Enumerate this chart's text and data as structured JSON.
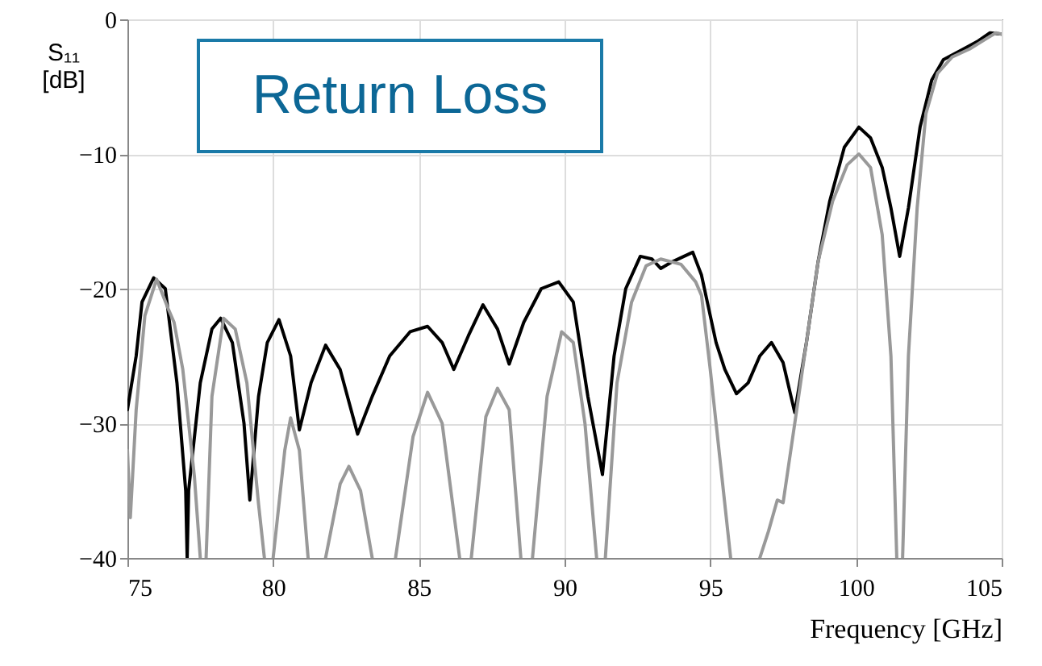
{
  "chart_data": {
    "type": "line",
    "title": "Return Loss",
    "xlabel": "Frequency [GHz]",
    "ylabel": "S₁₁ [dB]",
    "xlim": [
      75,
      105
    ],
    "xticks": [
      75,
      80,
      85,
      90,
      95,
      100,
      105
    ],
    "ylim": [
      -40,
      0
    ],
    "yticks": [
      -40,
      -30,
      -20,
      -10,
      0
    ],
    "grid": true,
    "legend": false,
    "line_style": "solid",
    "marker": "none",
    "series": [
      {
        "color": "#000000",
        "x": [
          75,
          75.3,
          75.5,
          75.9,
          76.3,
          76.7,
          77.0,
          77.05,
          77.1,
          77.5,
          77.9,
          78.2,
          78.6,
          79.0,
          79.2,
          79.5,
          79.8,
          80.2,
          80.6,
          80.9,
          81.3,
          81.8,
          82.3,
          82.9,
          83.4,
          84.0,
          84.7,
          85.3,
          85.8,
          86.2,
          86.7,
          87.2,
          87.7,
          88.1,
          88.6,
          89.2,
          89.8,
          90.3,
          90.8,
          91.3,
          91.7,
          92.1,
          92.6,
          93.0,
          93.3,
          93.7,
          94.1,
          94.4,
          94.7,
          95.2,
          95.5,
          95.9,
          96.3,
          96.7,
          97.1,
          97.5,
          97.9,
          98.3,
          98.7,
          99.1,
          99.6,
          100.1,
          100.5,
          100.9,
          101.2,
          101.5,
          101.8,
          102.2,
          102.6,
          103.0,
          103.6,
          104.2,
          104.6,
          105
        ],
        "values": [
          -29,
          -25,
          -21,
          -19.2,
          -20,
          -27,
          -35,
          -40,
          -35,
          -27,
          -23,
          -22.2,
          -24,
          -30,
          -35.7,
          -28,
          -24,
          -22.3,
          -25,
          -30.5,
          -27,
          -24.2,
          -26,
          -30.8,
          -28,
          -25,
          -23.2,
          -22.8,
          -24,
          -26,
          -23.5,
          -21.2,
          -23,
          -25.6,
          -22.5,
          -20,
          -19.5,
          -21,
          -28,
          -33.8,
          -25,
          -20,
          -17.6,
          -17.8,
          -18.5,
          -18,
          -17.6,
          -17.3,
          -19,
          -24,
          -26,
          -27.8,
          -27,
          -25,
          -24,
          -25.5,
          -29.2,
          -24,
          -18,
          -13.5,
          -9.5,
          -8,
          -8.8,
          -11,
          -14,
          -17.6,
          -14,
          -8,
          -4.5,
          -3,
          -2.3,
          -1.6,
          -1,
          -1.1
        ]
      },
      {
        "color": "#999999",
        "x": [
          75,
          75.1,
          75.3,
          75.6,
          76.0,
          76.4,
          76.6,
          76.9,
          77.3,
          77.5,
          77.6,
          77.7,
          77.9,
          78.3,
          78.7,
          79.1,
          79.5,
          79.7,
          79.85,
          80.0,
          80.4,
          80.6,
          80.9,
          81.2,
          81.5,
          81.8,
          82.3,
          82.6,
          83.0,
          83.4,
          83.8,
          84.2,
          84.8,
          85.3,
          85.8,
          86.4,
          86.6,
          86.8,
          87.3,
          87.7,
          88.1,
          88.5,
          88.7,
          88.9,
          89.4,
          89.9,
          90.3,
          90.7,
          91.1,
          91.25,
          91.4,
          91.8,
          92.3,
          92.8,
          93.3,
          94.0,
          94.5,
          94.7,
          95.0,
          95.4,
          95.7,
          96.2,
          96.7,
          97.0,
          97.3,
          97.5,
          97.9,
          98.3,
          98.7,
          99.2,
          99.7,
          100.1,
          100.5,
          100.9,
          101.2,
          101.4,
          101.5,
          101.6,
          101.8,
          102.1,
          102.4,
          102.8,
          103.3,
          103.9,
          104.5,
          104.8,
          105
        ],
        "values": [
          -32,
          -37,
          -29,
          -22,
          -19.3,
          -21.5,
          -22.5,
          -26,
          -34,
          -40,
          null,
          -40,
          -28,
          -22.2,
          -23,
          -27,
          -36,
          -40,
          null,
          -40,
          -32,
          -29.6,
          -32,
          -40,
          null,
          -40,
          -34.5,
          -33.2,
          -35,
          -40,
          null,
          -40,
          -31,
          -27.7,
          -30,
          -40,
          null,
          -40,
          -29.5,
          -27.4,
          -29,
          -40,
          null,
          -40,
          -28,
          -23.2,
          -24,
          -30,
          -40,
          null,
          -40,
          -27,
          -21,
          -18.3,
          -17.8,
          -18.2,
          -19.5,
          -20.5,
          -26,
          -34,
          -40,
          null,
          -40,
          -38,
          -35.7,
          -35.9,
          -30,
          -24,
          -18,
          -13.5,
          -10.8,
          -10,
          -11,
          -16,
          -25,
          -40,
          null,
          -40,
          -25,
          -14,
          -7,
          -4,
          -2.8,
          -2.2,
          -1.4,
          -1,
          -1.1
        ]
      }
    ]
  }
}
